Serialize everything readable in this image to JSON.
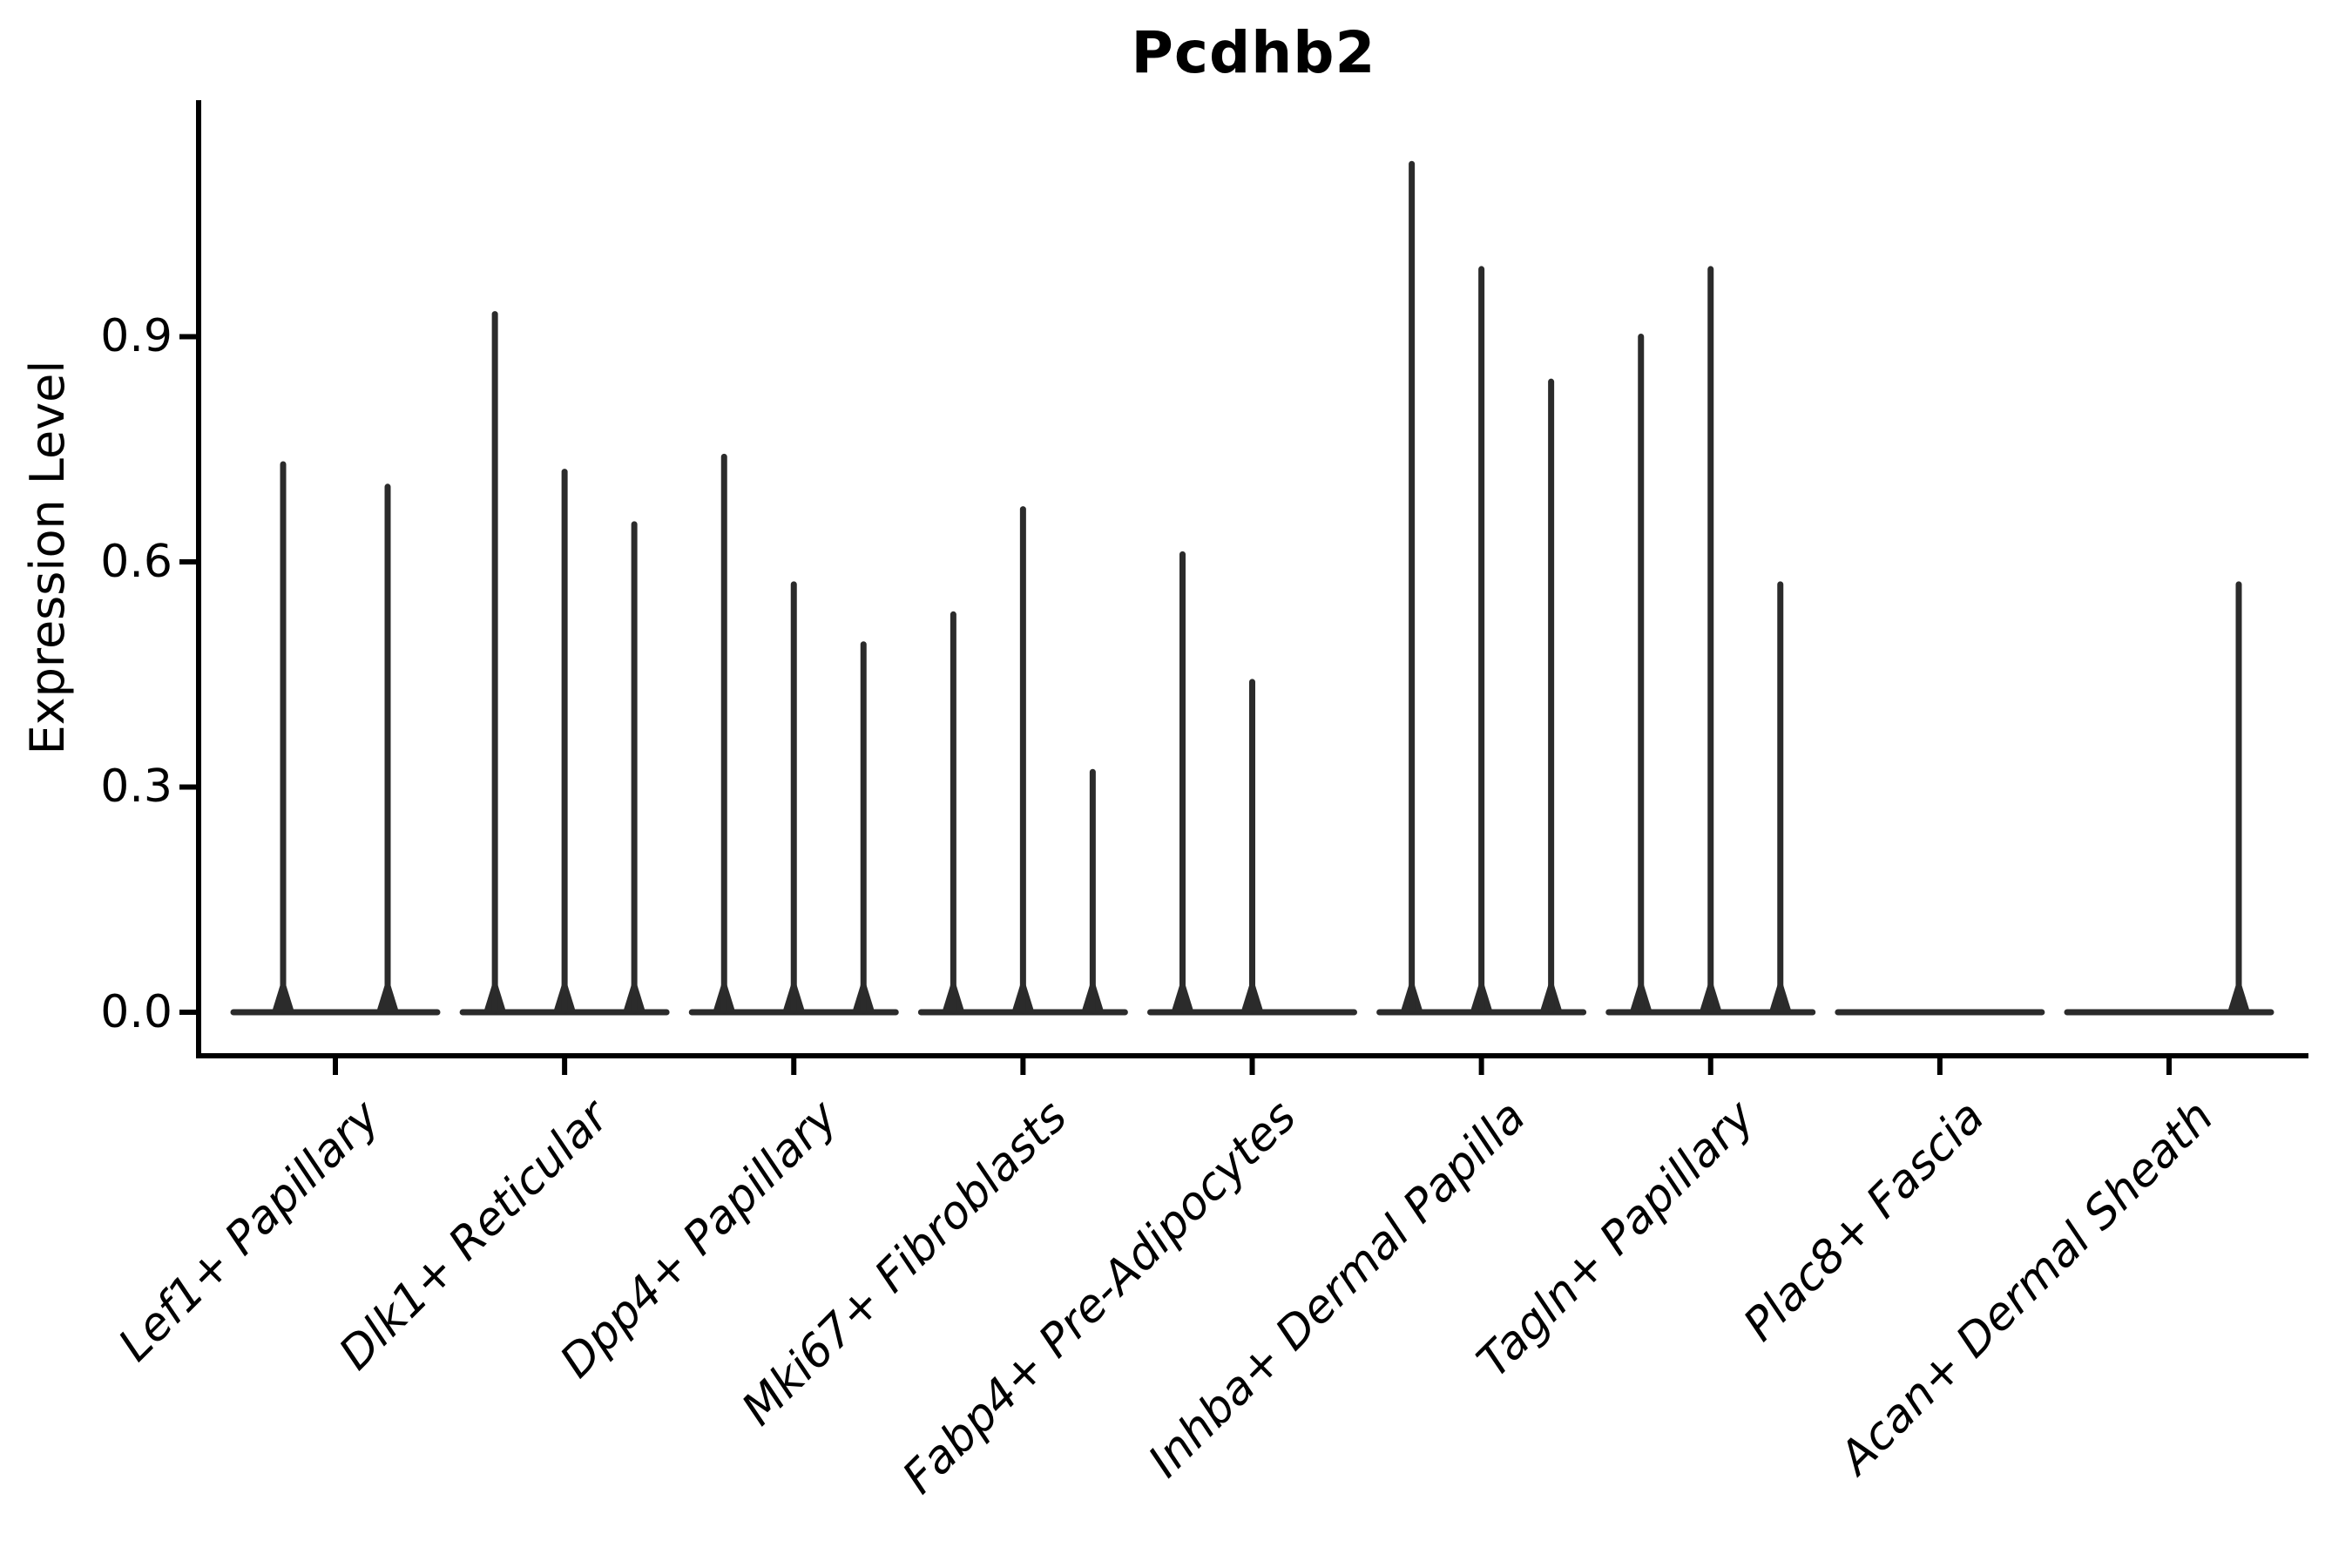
{
  "figure": {
    "title": "Pcdhb2",
    "ylabel": "Expression Level"
  },
  "colors": {
    "axis": "#000000",
    "text": "#000000",
    "violin": "#2b2b2b",
    "background": "#ffffff"
  },
  "chart_data": {
    "type": "violin",
    "title": "Pcdhb2",
    "xlabel": "",
    "ylabel": "Expression Level",
    "ylim": [
      0,
      1.22
    ],
    "yticks": [
      0.0,
      0.3,
      0.6,
      0.9
    ],
    "ytick_labels": [
      "0.0",
      "0.3",
      "0.6",
      "0.9"
    ],
    "grid": false,
    "legend": "none",
    "categories": [
      "Lef1+ Papillary",
      "Dlk1+ Reticular",
      "Dpp4+ Papillary",
      "Mki67+ Fibroblasts",
      "Fabp4+ Pre-Adipocytes",
      "Inhba+ Dermal Papilla",
      "Tagln+ Papillary",
      "Plac8+ Fascia",
      "Acan+ Dermal Sheath"
    ],
    "violins": [
      {
        "category": "Lef1+ Papillary",
        "groups": 2,
        "maxima": [
          0.73,
          0.7
        ]
      },
      {
        "category": "Dlk1+ Reticular",
        "groups": 3,
        "maxima": [
          0.93,
          0.72,
          0.65
        ]
      },
      {
        "category": "Dpp4+ Papillary",
        "groups": 3,
        "maxima": [
          0.74,
          0.57,
          0.49
        ]
      },
      {
        "category": "Mki67+ Fibroblasts",
        "groups": 3,
        "maxima": [
          0.53,
          0.67,
          0.32
        ]
      },
      {
        "category": "Fabp4+ Pre-Adipocytes",
        "groups": 3,
        "maxima": [
          0.61,
          0.44,
          null
        ]
      },
      {
        "category": "Inhba+ Dermal Papilla",
        "groups": 3,
        "maxima": [
          1.13,
          0.99,
          0.84
        ]
      },
      {
        "category": "Tagln+ Papillary",
        "groups": 3,
        "maxima": [
          0.9,
          0.99,
          0.57
        ]
      },
      {
        "category": "Plac8+ Fascia",
        "groups": 3,
        "maxima": [
          null,
          null,
          null
        ]
      },
      {
        "category": "Acan+ Dermal Sheath",
        "groups": 3,
        "maxima": [
          null,
          null,
          0.57
        ]
      }
    ],
    "description": "Stacked single-gene violin plot; most cells at 0 expression (flat baselines), sparse expressing cells form thin vertical spikes. Values are violin maxima (expression level)."
  }
}
